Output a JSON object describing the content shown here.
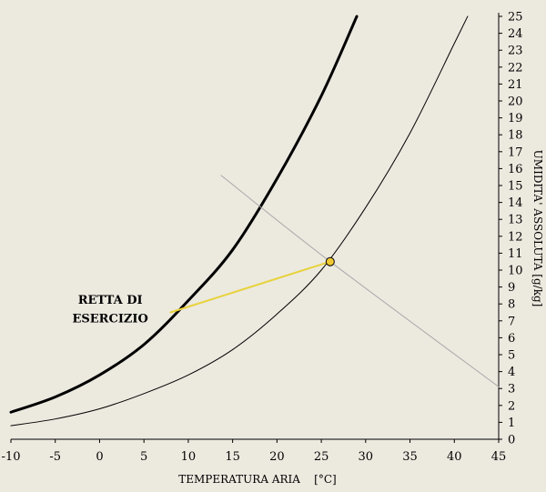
{
  "chart_data": {
    "type": "line",
    "title": "",
    "xlabel": "TEMPERATURA ARIA    [°C]",
    "ylabel": "UMIDITA' ASSOLUTA [g/kg]",
    "xlim": [
      -10,
      45
    ],
    "ylim": [
      0,
      25
    ],
    "xticks": [
      -10,
      -5,
      0,
      5,
      10,
      15,
      20,
      25,
      30,
      35,
      40,
      45
    ],
    "yticks": [
      0,
      1,
      2,
      3,
      4,
      5,
      6,
      7,
      8,
      9,
      10,
      11,
      12,
      13,
      14,
      15,
      16,
      17,
      18,
      19,
      20,
      21,
      22,
      23,
      24,
      25
    ],
    "grid": false,
    "series": [
      {
        "color": "#000000",
        "line_weight": "bold",
        "x": [
          -10,
          -5,
          0,
          5,
          10,
          15,
          20,
          25,
          29
        ],
        "y": [
          1.6,
          2.5,
          3.8,
          5.6,
          8.2,
          11.2,
          15.4,
          20.3,
          25.0
        ]
      },
      {
        "color": "#000000",
        "line_weight": "thin",
        "x": [
          -10,
          -5,
          0,
          5,
          10,
          15,
          20,
          25,
          30,
          35,
          40,
          41.5
        ],
        "y": [
          0.8,
          1.2,
          1.8,
          2.7,
          3.8,
          5.3,
          7.4,
          10.0,
          13.7,
          18.1,
          23.4,
          25.0
        ]
      },
      {
        "color": "#a8a8a8",
        "line_weight": "thin",
        "x": [
          13.7,
          26,
          45
        ],
        "y": [
          15.6,
          10.5,
          3.1
        ]
      },
      {
        "color": "#e8d23a",
        "line_weight": "medium",
        "x": [
          8,
          26
        ],
        "y": [
          7.5,
          10.5
        ]
      }
    ],
    "markers": [
      {
        "x": 26,
        "y": 10.5,
        "fill": "#f0c832"
      }
    ],
    "annotations": [
      {
        "text": "RETTA DI",
        "x": 1.2,
        "y": 8.0
      },
      {
        "text": "ESERCIZIO",
        "x": 1.2,
        "y": 6.9
      }
    ]
  }
}
